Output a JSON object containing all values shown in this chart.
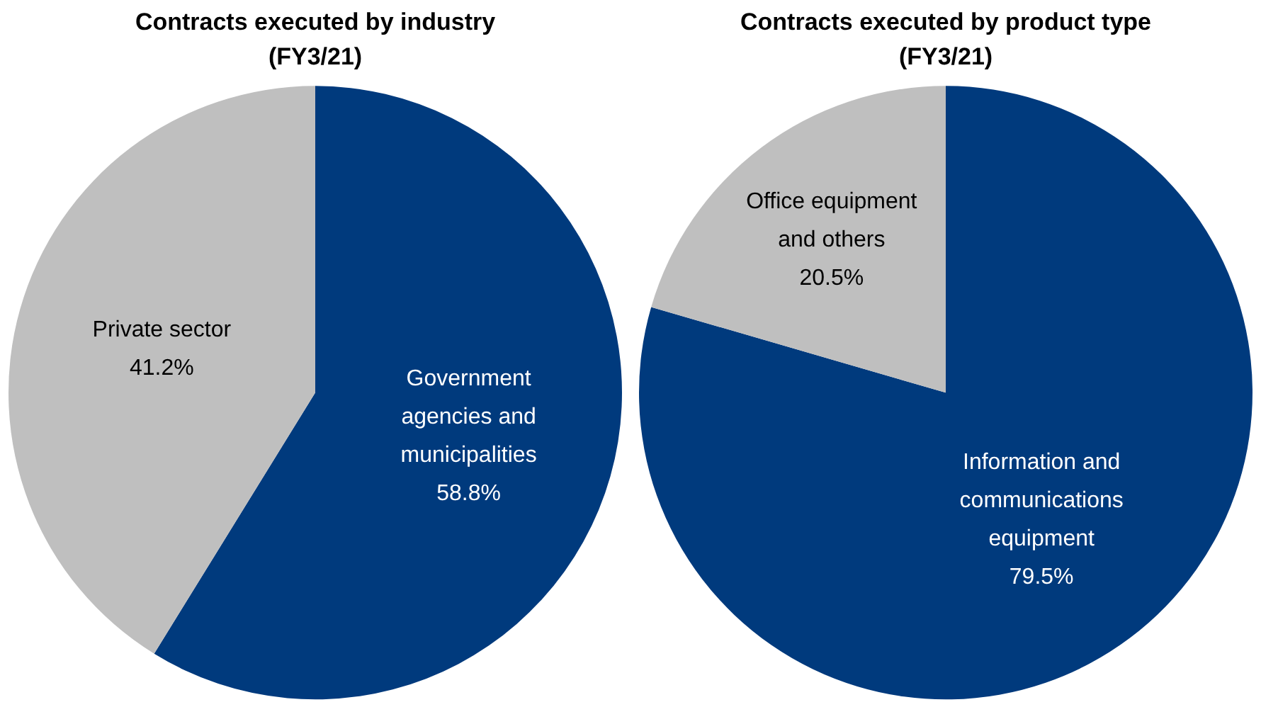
{
  "chart_data": [
    {
      "type": "pie",
      "title": "Contracts executed by industry (FY3/21)",
      "categories": [
        "Government agencies and municipalities",
        "Private sector"
      ],
      "values": [
        58.8,
        41.2
      ],
      "colors": [
        "#003a7d",
        "#bfbfbf"
      ],
      "value_labels": [
        "58.8%",
        "41.2%"
      ],
      "legend": false
    },
    {
      "type": "pie",
      "title": "Contracts executed by product type (FY3/21)",
      "categories": [
        "Information and communications equipment",
        "Office equipment and others"
      ],
      "values": [
        79.5,
        20.5
      ],
      "colors": [
        "#003a7d",
        "#bfbfbf"
      ],
      "value_labels": [
        "79.5%",
        "20.5%"
      ],
      "legend": false
    }
  ]
}
